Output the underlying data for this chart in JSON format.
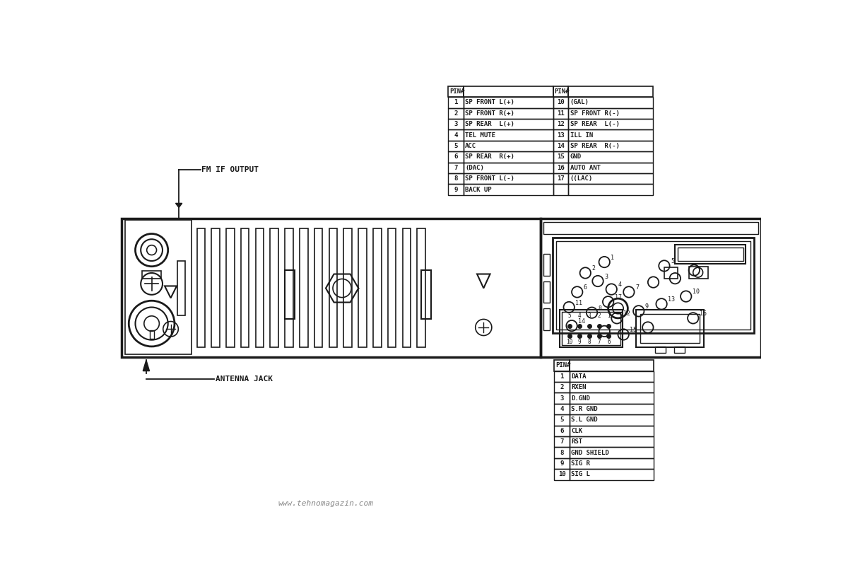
{
  "bg_color": "#ffffff",
  "line_color": "#1a1a1a",
  "source": "www.tehnomagazin.com",
  "table1_rows_left": [
    [
      "1",
      "SP FRONT L(+)"
    ],
    [
      "2",
      "SP FRONT R(+)"
    ],
    [
      "3",
      "SP REAR  L(+)"
    ],
    [
      "4",
      "TEL MUTE"
    ],
    [
      "5",
      "ACC"
    ],
    [
      "6",
      "SP REAR  R(+)"
    ],
    [
      "7",
      "(DAC)"
    ],
    [
      "8",
      "SP FRONT L(-)"
    ],
    [
      "9",
      "BACK UP"
    ]
  ],
  "table1_rows_right": [
    [
      "10",
      "(GAL)"
    ],
    [
      "11",
      "SP FRONT R(-)"
    ],
    [
      "12",
      "SP REAR  L(-)"
    ],
    [
      "13",
      "ILL IN"
    ],
    [
      "14",
      "SP REAR  R(-)"
    ],
    [
      "15",
      "GND"
    ],
    [
      "16",
      "AUTO ANT"
    ],
    [
      "17",
      "((LAC)"
    ]
  ],
  "table2_rows": [
    [
      "1",
      "DATA"
    ],
    [
      "2",
      "RXEN"
    ],
    [
      "3",
      "D.GND"
    ],
    [
      "4",
      "S.R GND"
    ],
    [
      "5",
      "S.L GND"
    ],
    [
      "6",
      "CLK"
    ],
    [
      "7",
      "RST"
    ],
    [
      "8",
      "GND SHIELD"
    ],
    [
      "9",
      "SIG R"
    ],
    [
      "10",
      "SIG L"
    ]
  ]
}
